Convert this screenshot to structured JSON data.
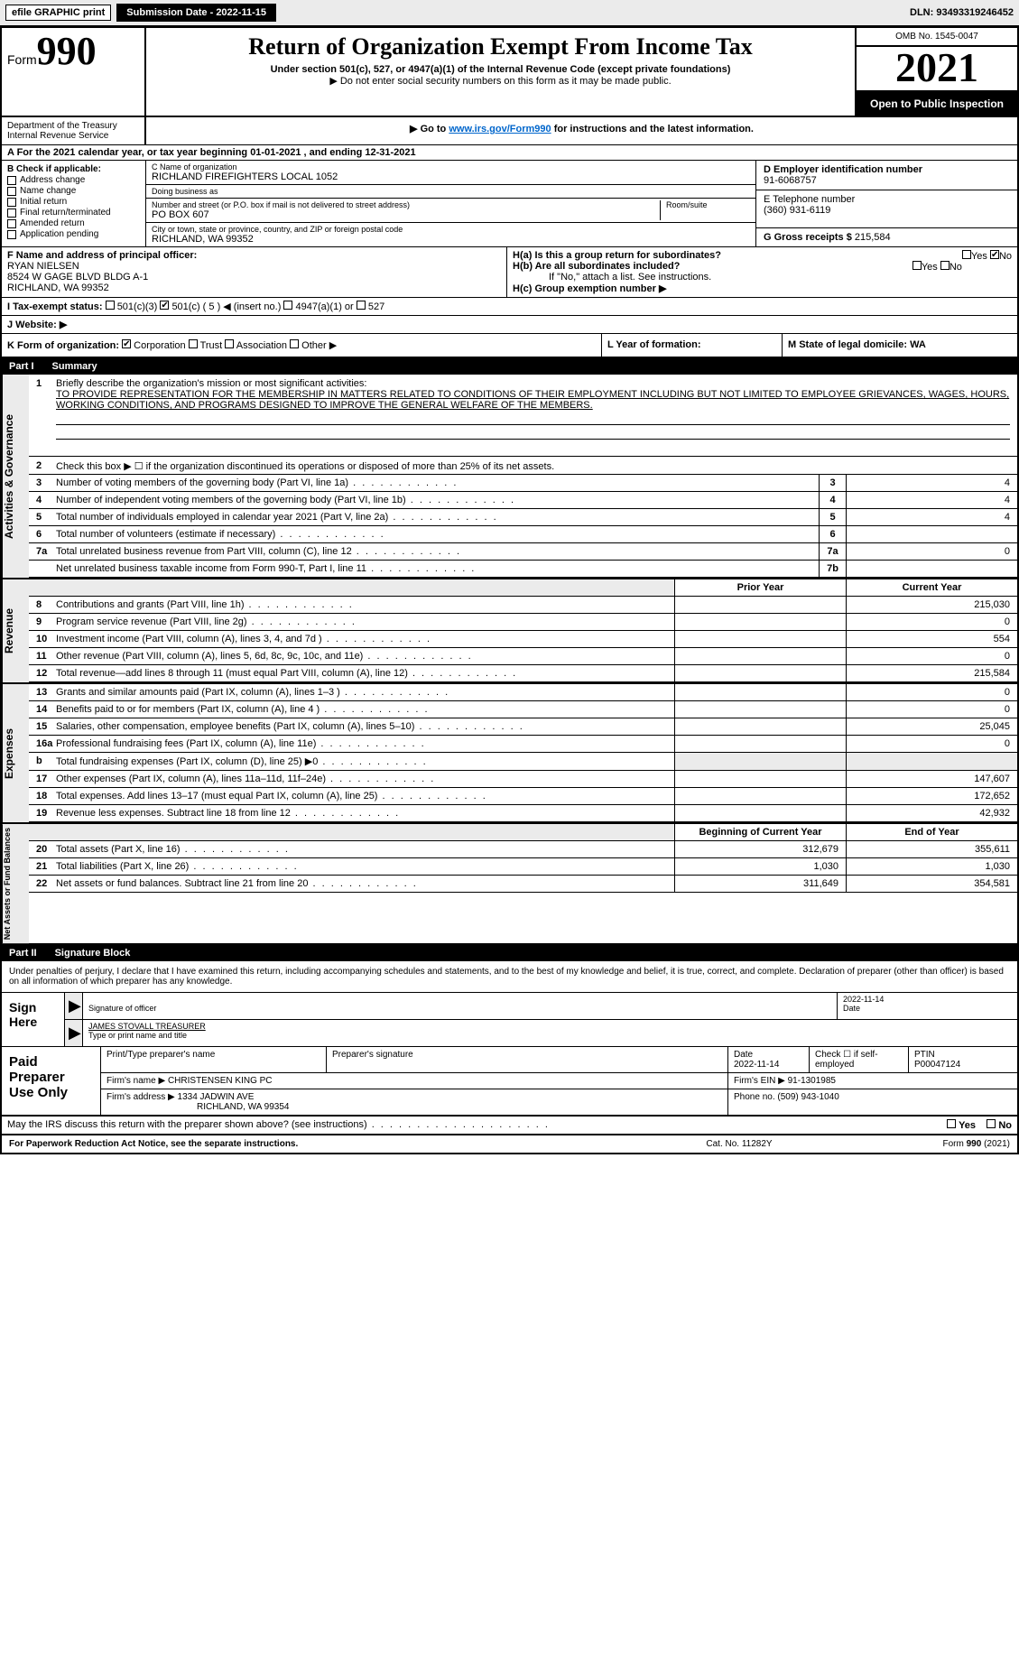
{
  "top_bar": {
    "efile": "efile GRAPHIC print",
    "submit": "Submission Date - 2022-11-15",
    "dln": "DLN: 93493319246452"
  },
  "header": {
    "form_prefix": "Form",
    "form_number": "990",
    "title": "Return of Organization Exempt From Income Tax",
    "sub1": "Under section 501(c), 527, or 4947(a)(1) of the Internal Revenue Code (except private foundations)",
    "sub2": "▶ Do not enter social security numbers on this form as it may be made public.",
    "sub3_pre": "▶ Go to ",
    "sub3_link": "www.irs.gov/Form990",
    "sub3_post": " for instructions and the latest information.",
    "omb": "OMB No. 1545-0047",
    "year": "2021",
    "open": "Open to Public Inspection",
    "dept": "Department of the Treasury Internal Revenue Service"
  },
  "row_a": {
    "text": "A For the 2021 calendar year, or tax year beginning 01-01-2021    , and ending 12-31-2021"
  },
  "block_b": {
    "title": "B Check if applicable:",
    "items": [
      "Address change",
      "Name change",
      "Initial return",
      "Final return/terminated",
      "Amended return",
      "Application pending"
    ]
  },
  "block_c": {
    "name_label": "C Name of organization",
    "name": "RICHLAND FIREFIGHTERS LOCAL 1052",
    "dba_label": "Doing business as",
    "dba": "",
    "street_label": "Number and street (or P.O. box if mail is not delivered to street address)",
    "room_label": "Room/suite",
    "street": "PO BOX 607",
    "city_label": "City or town, state or province, country, and ZIP or foreign postal code",
    "city": "RICHLAND, WA  99352"
  },
  "block_d": {
    "ein_label": "D Employer identification number",
    "ein": "91-6068757",
    "phone_label": "E Telephone number",
    "phone": "(360) 931-6119",
    "gross_label": "G Gross receipts $",
    "gross": "215,584"
  },
  "block_f": {
    "label": "F  Name and address of principal officer:",
    "name": "RYAN NIELSEN",
    "addr1": "8524 W GAGE BLVD BLDG A-1",
    "addr2": "RICHLAND, WA  99352"
  },
  "block_h": {
    "ha": "H(a)  Is this a group return for subordinates?",
    "hb": "H(b)  Are all subordinates included?",
    "hb_note": "If \"No,\" attach a list. See instructions.",
    "hc": "H(c)  Group exemption number ▶",
    "yes": "Yes",
    "no": "No"
  },
  "row_i": {
    "label": "I  Tax-exempt status:",
    "opts": [
      "501(c)(3)",
      "501(c) ( 5 ) ◀ (insert no.)",
      "4947(a)(1) or",
      "527"
    ]
  },
  "row_j": {
    "label": "J  Website: ▶"
  },
  "row_k": {
    "label": "K Form of organization:",
    "opts": [
      "Corporation",
      "Trust",
      "Association",
      "Other ▶"
    ]
  },
  "row_l": {
    "label": "L Year of formation:"
  },
  "row_m": {
    "label": "M State of legal domicile: WA"
  },
  "parts": {
    "p1": "Part I",
    "p1_title": "Summary",
    "p2": "Part II",
    "p2_title": "Signature Block"
  },
  "tabs": {
    "gov": "Activities & Governance",
    "rev": "Revenue",
    "exp": "Expenses",
    "net": "Net Assets or Fund Balances"
  },
  "summary": {
    "line1_label": "Briefly describe the organization's mission or most significant activities:",
    "line1_text": "TO PROVIDE REPRESENTATION FOR THE MEMBERSHIP IN MATTERS RELATED TO CONDITIONS OF THEIR EMPLOYMENT INCLUDING BUT NOT LIMITED TO EMPLOYEE GRIEVANCES, WAGES, HOURS, WORKING CONDITIONS, AND PROGRAMS DESIGNED TO IMPROVE THE GENERAL WELFARE OF THE MEMBERS.",
    "line2": "Check this box ▶ ☐ if the organization discontinued its operations or disposed of more than 25% of its net assets.",
    "rows_num": [
      {
        "n": "3",
        "label": "Number of voting members of the governing body (Part VI, line 1a)",
        "box": "3",
        "val": "4"
      },
      {
        "n": "4",
        "label": "Number of independent voting members of the governing body (Part VI, line 1b)",
        "box": "4",
        "val": "4"
      },
      {
        "n": "5",
        "label": "Total number of individuals employed in calendar year 2021 (Part V, line 2a)",
        "box": "5",
        "val": "4"
      },
      {
        "n": "6",
        "label": "Total number of volunteers (estimate if necessary)",
        "box": "6",
        "val": ""
      },
      {
        "n": "7a",
        "label": "Total unrelated business revenue from Part VIII, column (C), line 12",
        "box": "7a",
        "val": "0"
      },
      {
        "n": "",
        "label": "Net unrelated business taxable income from Form 990-T, Part I, line 11",
        "box": "7b",
        "val": ""
      }
    ],
    "col_prior": "Prior Year",
    "col_current": "Current Year",
    "rev_rows": [
      {
        "n": "8",
        "label": "Contributions and grants (Part VIII, line 1h)",
        "prior": "",
        "current": "215,030"
      },
      {
        "n": "9",
        "label": "Program service revenue (Part VIII, line 2g)",
        "prior": "",
        "current": "0"
      },
      {
        "n": "10",
        "label": "Investment income (Part VIII, column (A), lines 3, 4, and 7d )",
        "prior": "",
        "current": "554"
      },
      {
        "n": "11",
        "label": "Other revenue (Part VIII, column (A), lines 5, 6d, 8c, 9c, 10c, and 11e)",
        "prior": "",
        "current": "0"
      },
      {
        "n": "12",
        "label": "Total revenue—add lines 8 through 11 (must equal Part VIII, column (A), line 12)",
        "prior": "",
        "current": "215,584"
      }
    ],
    "exp_rows": [
      {
        "n": "13",
        "label": "Grants and similar amounts paid (Part IX, column (A), lines 1–3 )",
        "prior": "",
        "current": "0"
      },
      {
        "n": "14",
        "label": "Benefits paid to or for members (Part IX, column (A), line 4 )",
        "prior": "",
        "current": "0"
      },
      {
        "n": "15",
        "label": "Salaries, other compensation, employee benefits (Part IX, column (A), lines 5–10)",
        "prior": "",
        "current": "25,045"
      },
      {
        "n": "16a",
        "label": "Professional fundraising fees (Part IX, column (A), line 11e)",
        "prior": "",
        "current": "0"
      },
      {
        "n": "b",
        "label": "Total fundraising expenses (Part IX, column (D), line 25) ▶0",
        "prior": "grey",
        "current": "grey"
      },
      {
        "n": "17",
        "label": "Other expenses (Part IX, column (A), lines 11a–11d, 11f–24e)",
        "prior": "",
        "current": "147,607"
      },
      {
        "n": "18",
        "label": "Total expenses. Add lines 13–17 (must equal Part IX, column (A), line 25)",
        "prior": "",
        "current": "172,652"
      },
      {
        "n": "19",
        "label": "Revenue less expenses. Subtract line 18 from line 12",
        "prior": "",
        "current": "42,932"
      }
    ],
    "col_begin": "Beginning of Current Year",
    "col_end": "End of Year",
    "net_rows": [
      {
        "n": "20",
        "label": "Total assets (Part X, line 16)",
        "prior": "312,679",
        "current": "355,611"
      },
      {
        "n": "21",
        "label": "Total liabilities (Part X, line 26)",
        "prior": "1,030",
        "current": "1,030"
      },
      {
        "n": "22",
        "label": "Net assets or fund balances. Subtract line 21 from line 20",
        "prior": "311,649",
        "current": "354,581"
      }
    ]
  },
  "sig": {
    "declare": "Under penalties of perjury, I declare that I have examined this return, including accompanying schedules and statements, and to the best of my knowledge and belief, it is true, correct, and complete. Declaration of preparer (other than officer) is based on all information of which preparer has any knowledge.",
    "sign_here": "Sign Here",
    "sig_officer_label": "Signature of officer",
    "sig_date": "2022-11-14",
    "date_label": "Date",
    "officer_name": "JAMES STOVALL TREASURER",
    "officer_label": "Type or print name and title"
  },
  "prep": {
    "title": "Paid Preparer Use Only",
    "h_name": "Print/Type preparer's name",
    "h_sig": "Preparer's signature",
    "h_date": "Date",
    "date": "2022-11-14",
    "h_check": "Check ☐ if self-employed",
    "h_ptin": "PTIN",
    "ptin": "P00047124",
    "firm_name_label": "Firm's name    ▶",
    "firm_name": "CHRISTENSEN KING PC",
    "firm_ein_label": "Firm's EIN ▶",
    "firm_ein": "91-1301985",
    "firm_addr_label": "Firm's address ▶",
    "firm_addr1": "1334 JADWIN AVE",
    "firm_addr2": "RICHLAND, WA  99354",
    "phone_label": "Phone no.",
    "phone": "(509) 943-1040"
  },
  "discuss": {
    "text": "May the IRS discuss this return with the preparer shown above? (see instructions)",
    "yes": "Yes",
    "no": "No"
  },
  "footer": {
    "left": "For Paperwork Reduction Act Notice, see the separate instructions.",
    "mid": "Cat. No. 11282Y",
    "right": "Form 990 (2021)"
  }
}
